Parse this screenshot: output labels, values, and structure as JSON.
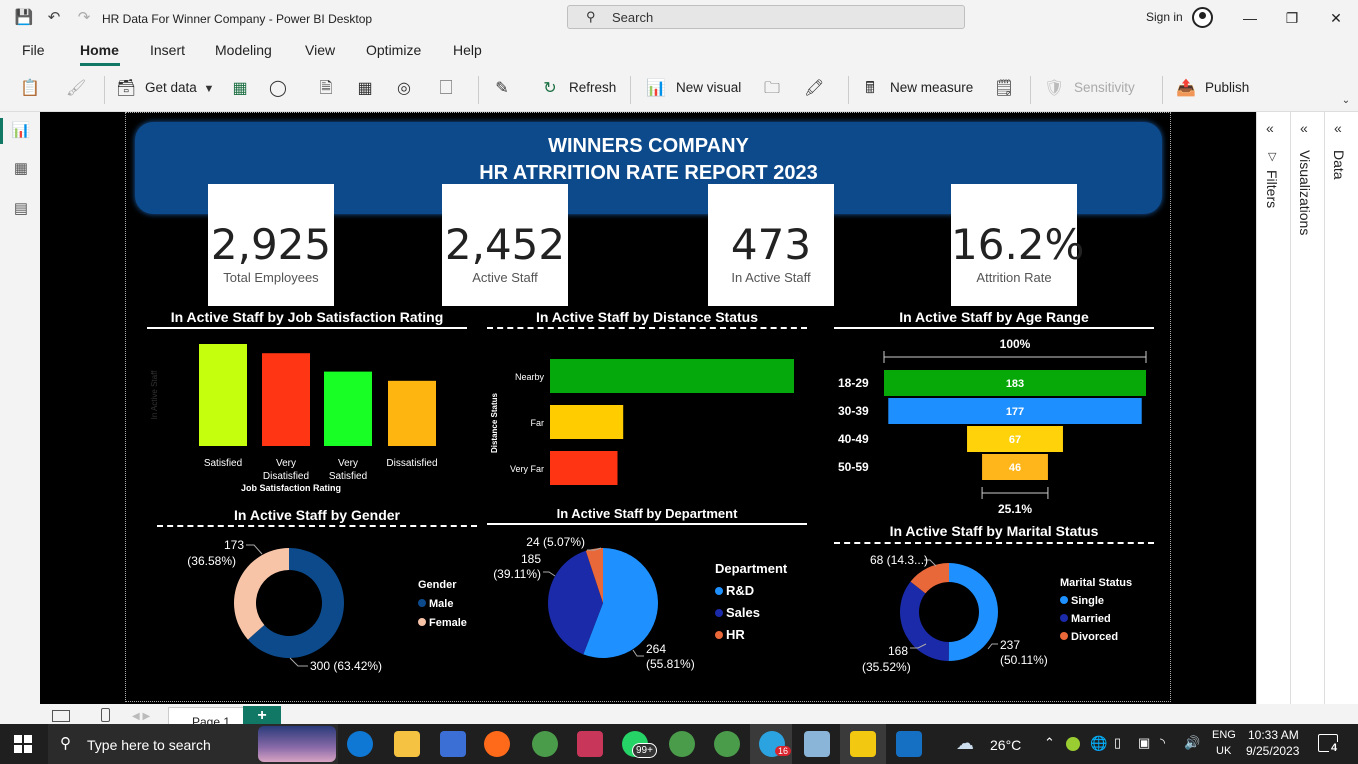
{
  "window": {
    "title": "HR Data For Winner Company - Power BI Desktop",
    "search_label": "Search",
    "signin": "Sign in"
  },
  "menu": [
    "File",
    "Home",
    "Insert",
    "Modeling",
    "View",
    "Optimize",
    "Help"
  ],
  "ribbon": {
    "get_data": "Get data",
    "refresh": "Refresh",
    "new_visual": "New visual",
    "new_measure": "New measure",
    "sensitivity": "Sensitivity",
    "publish": "Publish"
  },
  "panes": {
    "filters": "Filters",
    "visualizations": "Visualizations",
    "data": "Data"
  },
  "report": {
    "banner_line1": "WINNERS COMPANY",
    "banner_line2": "HR ATRRITION RATE REPORT 2023",
    "kpis": [
      {
        "value": "2,925",
        "label": "Total Employees"
      },
      {
        "value": "2,452",
        "label": "Active Staff"
      },
      {
        "value": "473",
        "label": "In Active Staff"
      },
      {
        "value": "16.2%",
        "label": "Attrition Rate"
      }
    ]
  },
  "chart_data": [
    {
      "type": "bar",
      "title": "In Active Staff by Job Satisfaction Rating",
      "xlabel": "Job Satisfaction Rating",
      "ylabel": "In Active Staff",
      "categories": [
        "Satisfied",
        "Very Disatisfied",
        "Very Satisfied",
        "Dissatisfied"
      ],
      "values": [
        133,
        121,
        97,
        85
      ],
      "colors": [
        "#c5ff0d",
        "#ff3513",
        "#17ff24",
        "#ffb50f"
      ]
    },
    {
      "type": "bar",
      "orientation": "horizontal",
      "title": "In Active Staff by Distance Status",
      "ylabel": "Distance Status",
      "categories": [
        "Nearby",
        "Far",
        "Very Far"
      ],
      "values": [
        300,
        90,
        83
      ],
      "colors": [
        "#06a90b",
        "#ffcc00",
        "#ff3413"
      ]
    },
    {
      "type": "funnel",
      "title": "In Active Staff by Age Range",
      "top_label": "100%",
      "bottom_label": "25.1%",
      "categories": [
        "18-29",
        "30-39",
        "40-49",
        "50-59"
      ],
      "values": [
        183,
        177,
        67,
        46
      ],
      "colors": [
        "#07a909",
        "#1e8fff",
        "#ffd20a",
        "#ffb61a"
      ]
    },
    {
      "type": "pie",
      "donut": true,
      "title": "In Active Staff by Gender",
      "legend_title": "Gender",
      "series": [
        {
          "name": "Male",
          "value": 300,
          "label": "300 (63.42%)",
          "color": "#0c4a8c"
        },
        {
          "name": "Female",
          "value": 173,
          "label": "173 (36.58%)",
          "color": "#f7c4a8"
        }
      ]
    },
    {
      "type": "pie",
      "title": "In Active Staff by Department",
      "legend_title": "Department",
      "series": [
        {
          "name": "R&D",
          "value": 264,
          "label": "264 (55.81%)",
          "color": "#1e90ff"
        },
        {
          "name": "Sales",
          "value": 185,
          "label": "185 (39.11%)",
          "color": "#1a2aa8"
        },
        {
          "name": "HR",
          "value": 24,
          "label": "24 (5.07%)",
          "color": "#e8683a"
        }
      ]
    },
    {
      "type": "pie",
      "donut": true,
      "title": "In Active Staff by Marital Status",
      "legend_title": "Marital Status",
      "series": [
        {
          "name": "Single",
          "value": 237,
          "label": "237 (50.11%)",
          "color": "#1e90ff"
        },
        {
          "name": "Married",
          "value": 168,
          "label": "168 (35.52%)",
          "color": "#1a2aa8"
        },
        {
          "name": "Divorced",
          "value": 68,
          "label": "68 (14.3...)",
          "color": "#e8683a"
        }
      ]
    }
  ],
  "pagebar": {
    "page_tab": "Page 1"
  },
  "taskbar": {
    "search_placeholder": "Type here to search",
    "temperature": "26°C",
    "lang1": "ENG",
    "lang2": "UK",
    "time": "10:33 AM",
    "date": "9/25/2023",
    "notif_count": "4",
    "whatsapp_badge": "99+",
    "telegram_badge": "16"
  }
}
